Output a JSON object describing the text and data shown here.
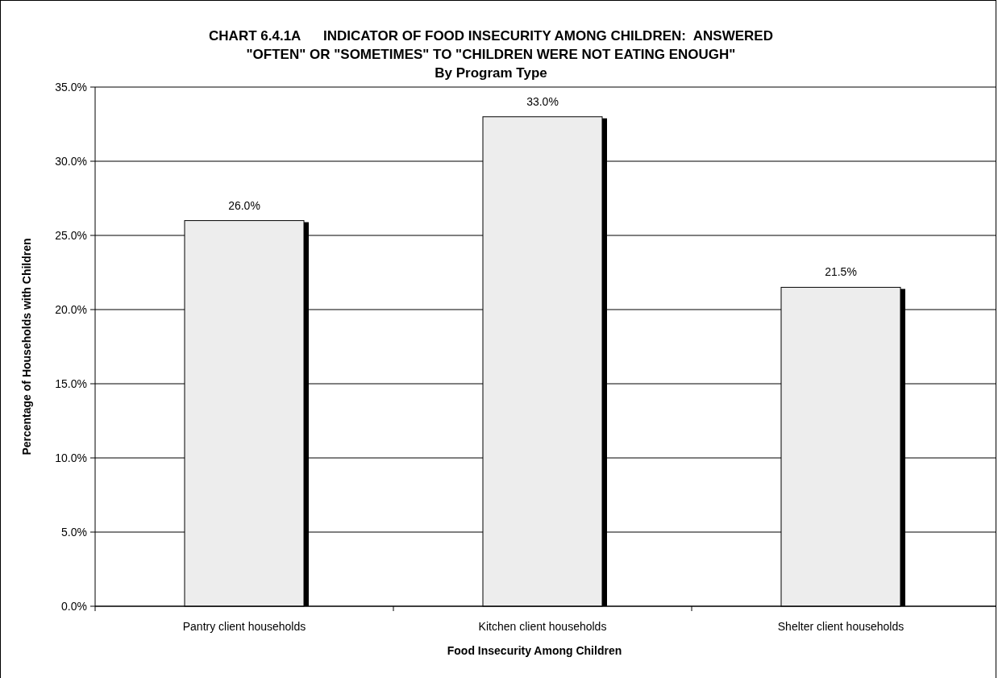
{
  "chart_data": {
    "type": "bar",
    "title": "CHART 6.4.1A      INDICATOR OF FOOD INSECURITY AMONG CHILDREN:  ANSWERED\n\"OFTEN\" OR \"SOMETIMES\" TO \"CHILDREN WERE NOT EATING ENOUGH\"",
    "subtitle": "By Program Type",
    "xlabel": "Food Insecurity Among Children",
    "ylabel": "Percentage of Households with Children",
    "categories": [
      "Pantry client households",
      "Kitchen client households",
      "Shelter client households"
    ],
    "values": [
      26.0,
      33.0,
      21.5
    ],
    "value_labels": [
      "26.0%",
      "33.0%",
      "21.5%"
    ],
    "color": "#ededed",
    "ylim": [
      0,
      35
    ],
    "yticks": [
      {
        "value": 0,
        "label": "0.0%"
      },
      {
        "value": 5,
        "label": "5.0%"
      },
      {
        "value": 10,
        "label": "10.0%"
      },
      {
        "value": 15,
        "label": "15.0%"
      },
      {
        "value": 20,
        "label": "20.0%"
      },
      {
        "value": 25,
        "label": "25.0%"
      },
      {
        "value": 30,
        "label": "30.0%"
      },
      {
        "value": 35,
        "label": "35.0%"
      }
    ],
    "grid": "y"
  }
}
